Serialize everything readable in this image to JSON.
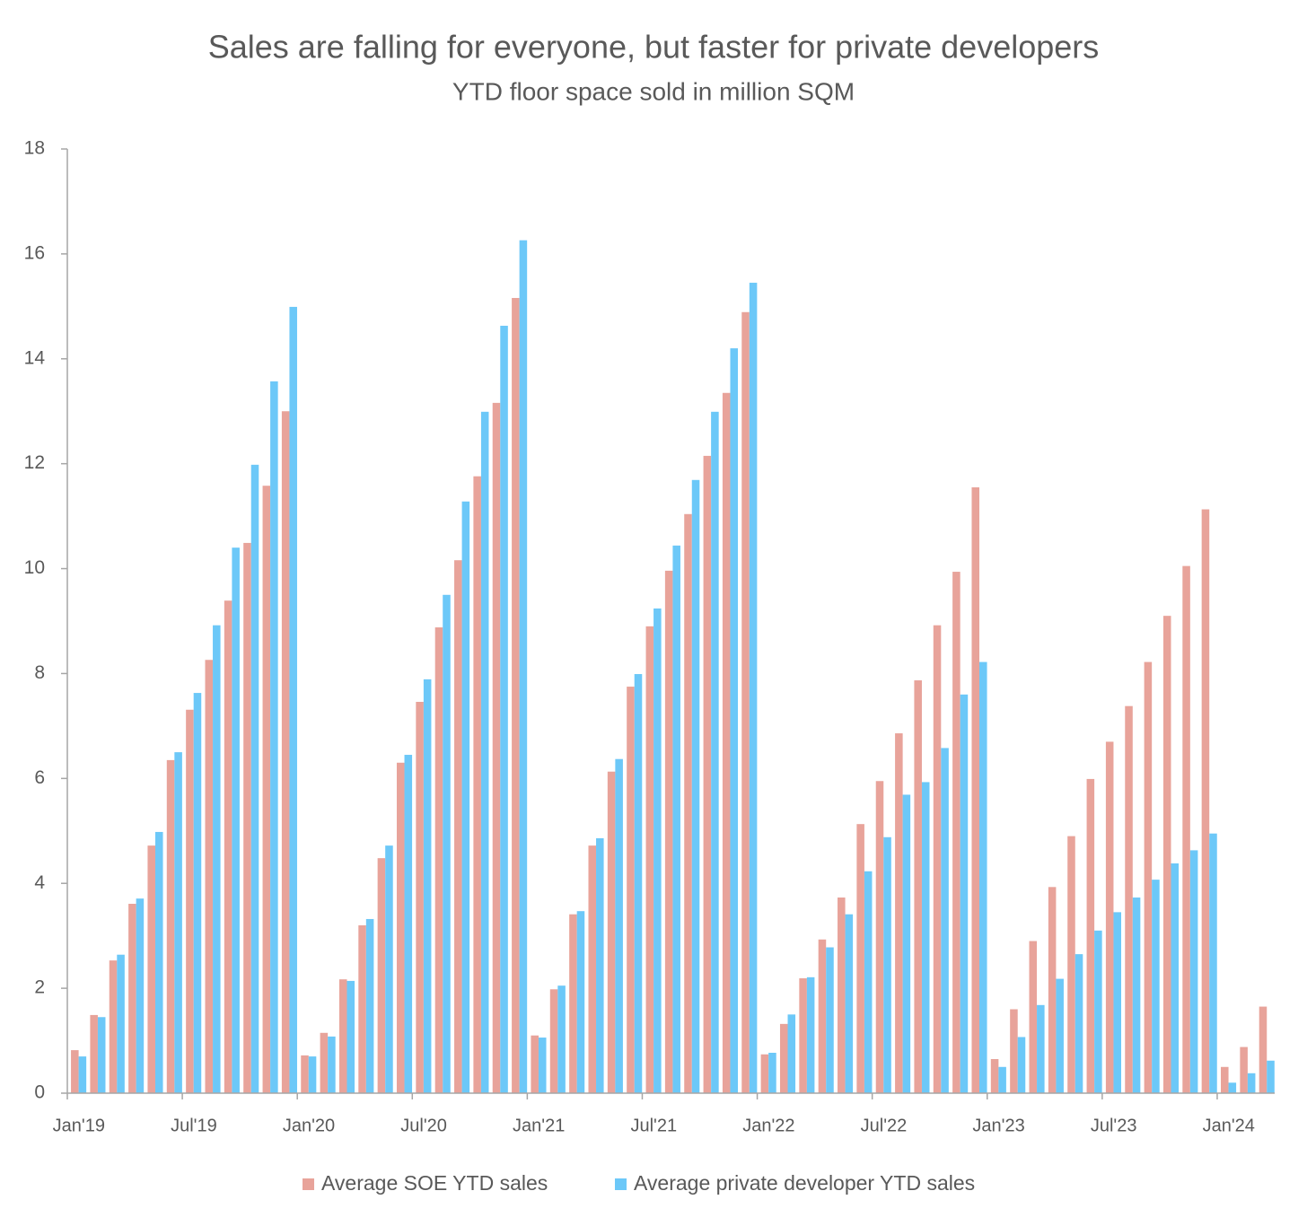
{
  "chart_data": {
    "type": "bar",
    "title": "Sales are falling for everyone, but faster for private developers",
    "subtitle": "YTD floor space sold in million SQM",
    "categories": [
      "Jan'19",
      null,
      null,
      null,
      null,
      null,
      "Jul'19",
      null,
      null,
      null,
      null,
      null,
      "Jan'20",
      null,
      null,
      null,
      null,
      null,
      "Jul'20",
      null,
      null,
      null,
      null,
      null,
      "Jan'21",
      null,
      null,
      null,
      null,
      null,
      "Jul'21",
      null,
      null,
      null,
      null,
      null,
      "Jan'22",
      null,
      null,
      null,
      null,
      null,
      "Jul'22",
      null,
      null,
      null,
      null,
      null,
      "Jan'23",
      null,
      null,
      null,
      null,
      null,
      "Jul'23",
      null,
      null,
      null,
      null,
      null,
      "Jan'24",
      null,
      null
    ],
    "series": [
      {
        "name": "Average SOE YTD sales",
        "color": "#e8a39a",
        "values": [
          0.82,
          1.49,
          2.53,
          3.61,
          4.72,
          6.35,
          7.31,
          8.26,
          9.39,
          10.49,
          11.58,
          13.0,
          0.72,
          1.15,
          2.17,
          3.2,
          4.48,
          6.3,
          7.46,
          8.88,
          10.16,
          11.76,
          13.16,
          15.16,
          1.1,
          1.98,
          3.41,
          4.72,
          6.13,
          7.75,
          8.9,
          9.96,
          11.04,
          12.15,
          13.35,
          14.89,
          0.74,
          1.32,
          2.19,
          2.93,
          3.73,
          5.13,
          5.95,
          6.86,
          7.87,
          8.92,
          9.94,
          11.55,
          0.65,
          1.6,
          2.9,
          3.93,
          4.9,
          5.99,
          6.7,
          7.38,
          8.22,
          9.1,
          10.05,
          11.13,
          0.5,
          0.88,
          1.65
        ]
      },
      {
        "name": "Average private developer YTD sales",
        "color": "#6cc8f8",
        "values": [
          0.7,
          1.45,
          2.64,
          3.71,
          4.98,
          6.5,
          7.63,
          8.92,
          10.4,
          11.98,
          13.57,
          14.99,
          0.7,
          1.08,
          2.14,
          3.32,
          4.72,
          6.45,
          7.89,
          9.5,
          11.28,
          12.99,
          14.63,
          16.26,
          1.06,
          2.05,
          3.47,
          4.86,
          6.37,
          7.99,
          9.24,
          10.44,
          11.69,
          12.99,
          14.2,
          15.45,
          0.77,
          1.5,
          2.21,
          2.78,
          3.41,
          4.23,
          4.88,
          5.69,
          5.93,
          6.58,
          7.6,
          8.22,
          0.5,
          1.07,
          1.68,
          2.18,
          2.65,
          3.1,
          3.45,
          3.73,
          4.07,
          4.38,
          4.63,
          4.95,
          0.2,
          0.38,
          0.62
        ]
      }
    ],
    "ylim": [
      0,
      18
    ],
    "yticks": [
      0,
      2,
      4,
      6,
      8,
      10,
      12,
      14,
      16,
      18
    ],
    "grid": false,
    "legend": "bottom"
  }
}
